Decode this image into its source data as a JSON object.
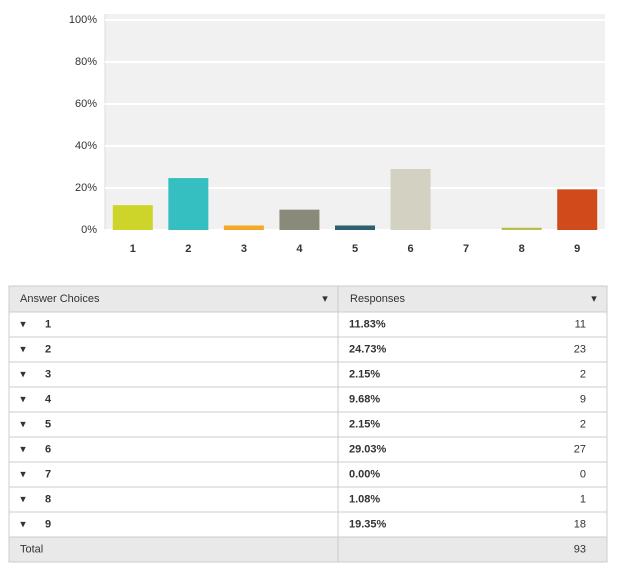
{
  "chart_data": {
    "type": "bar",
    "categories": [
      "1",
      "2",
      "3",
      "4",
      "5",
      "6",
      "7",
      "8",
      "9"
    ],
    "values": [
      11.83,
      24.73,
      2.15,
      9.68,
      2.15,
      29.03,
      0,
      1.08,
      19.35
    ],
    "colors": [
      "#cdd42a",
      "#35bfc1",
      "#f5a92a",
      "#8a8a7a",
      "#2e5f6d",
      "#d3d1c2",
      null,
      "#b9be4c",
      "#d04a1c"
    ],
    "ylim": [
      0,
      100
    ],
    "yticks": [
      {
        "value": 0,
        "label": "0%"
      },
      {
        "value": 20,
        "label": "20%"
      },
      {
        "value": 40,
        "label": "40%"
      },
      {
        "value": 60,
        "label": "60%"
      },
      {
        "value": 80,
        "label": "80%"
      },
      {
        "value": 100,
        "label": "100%"
      }
    ],
    "grid": true
  },
  "table": {
    "header": [
      "Answer Choices",
      "Responses"
    ],
    "rows": [
      [
        "1",
        "11.83%",
        "11"
      ],
      [
        "2",
        "24.73%",
        "23"
      ],
      [
        "3",
        "2.15%",
        "2"
      ],
      [
        "4",
        "9.68%",
        "9"
      ],
      [
        "5",
        "2.15%",
        "2"
      ],
      [
        "6",
        "29.03%",
        "27"
      ],
      [
        "7",
        "0.00%",
        "0"
      ],
      [
        "8",
        "1.08%",
        "1"
      ],
      [
        "9",
        "19.35%",
        "18"
      ]
    ],
    "total": [
      "Total",
      "93"
    ]
  }
}
